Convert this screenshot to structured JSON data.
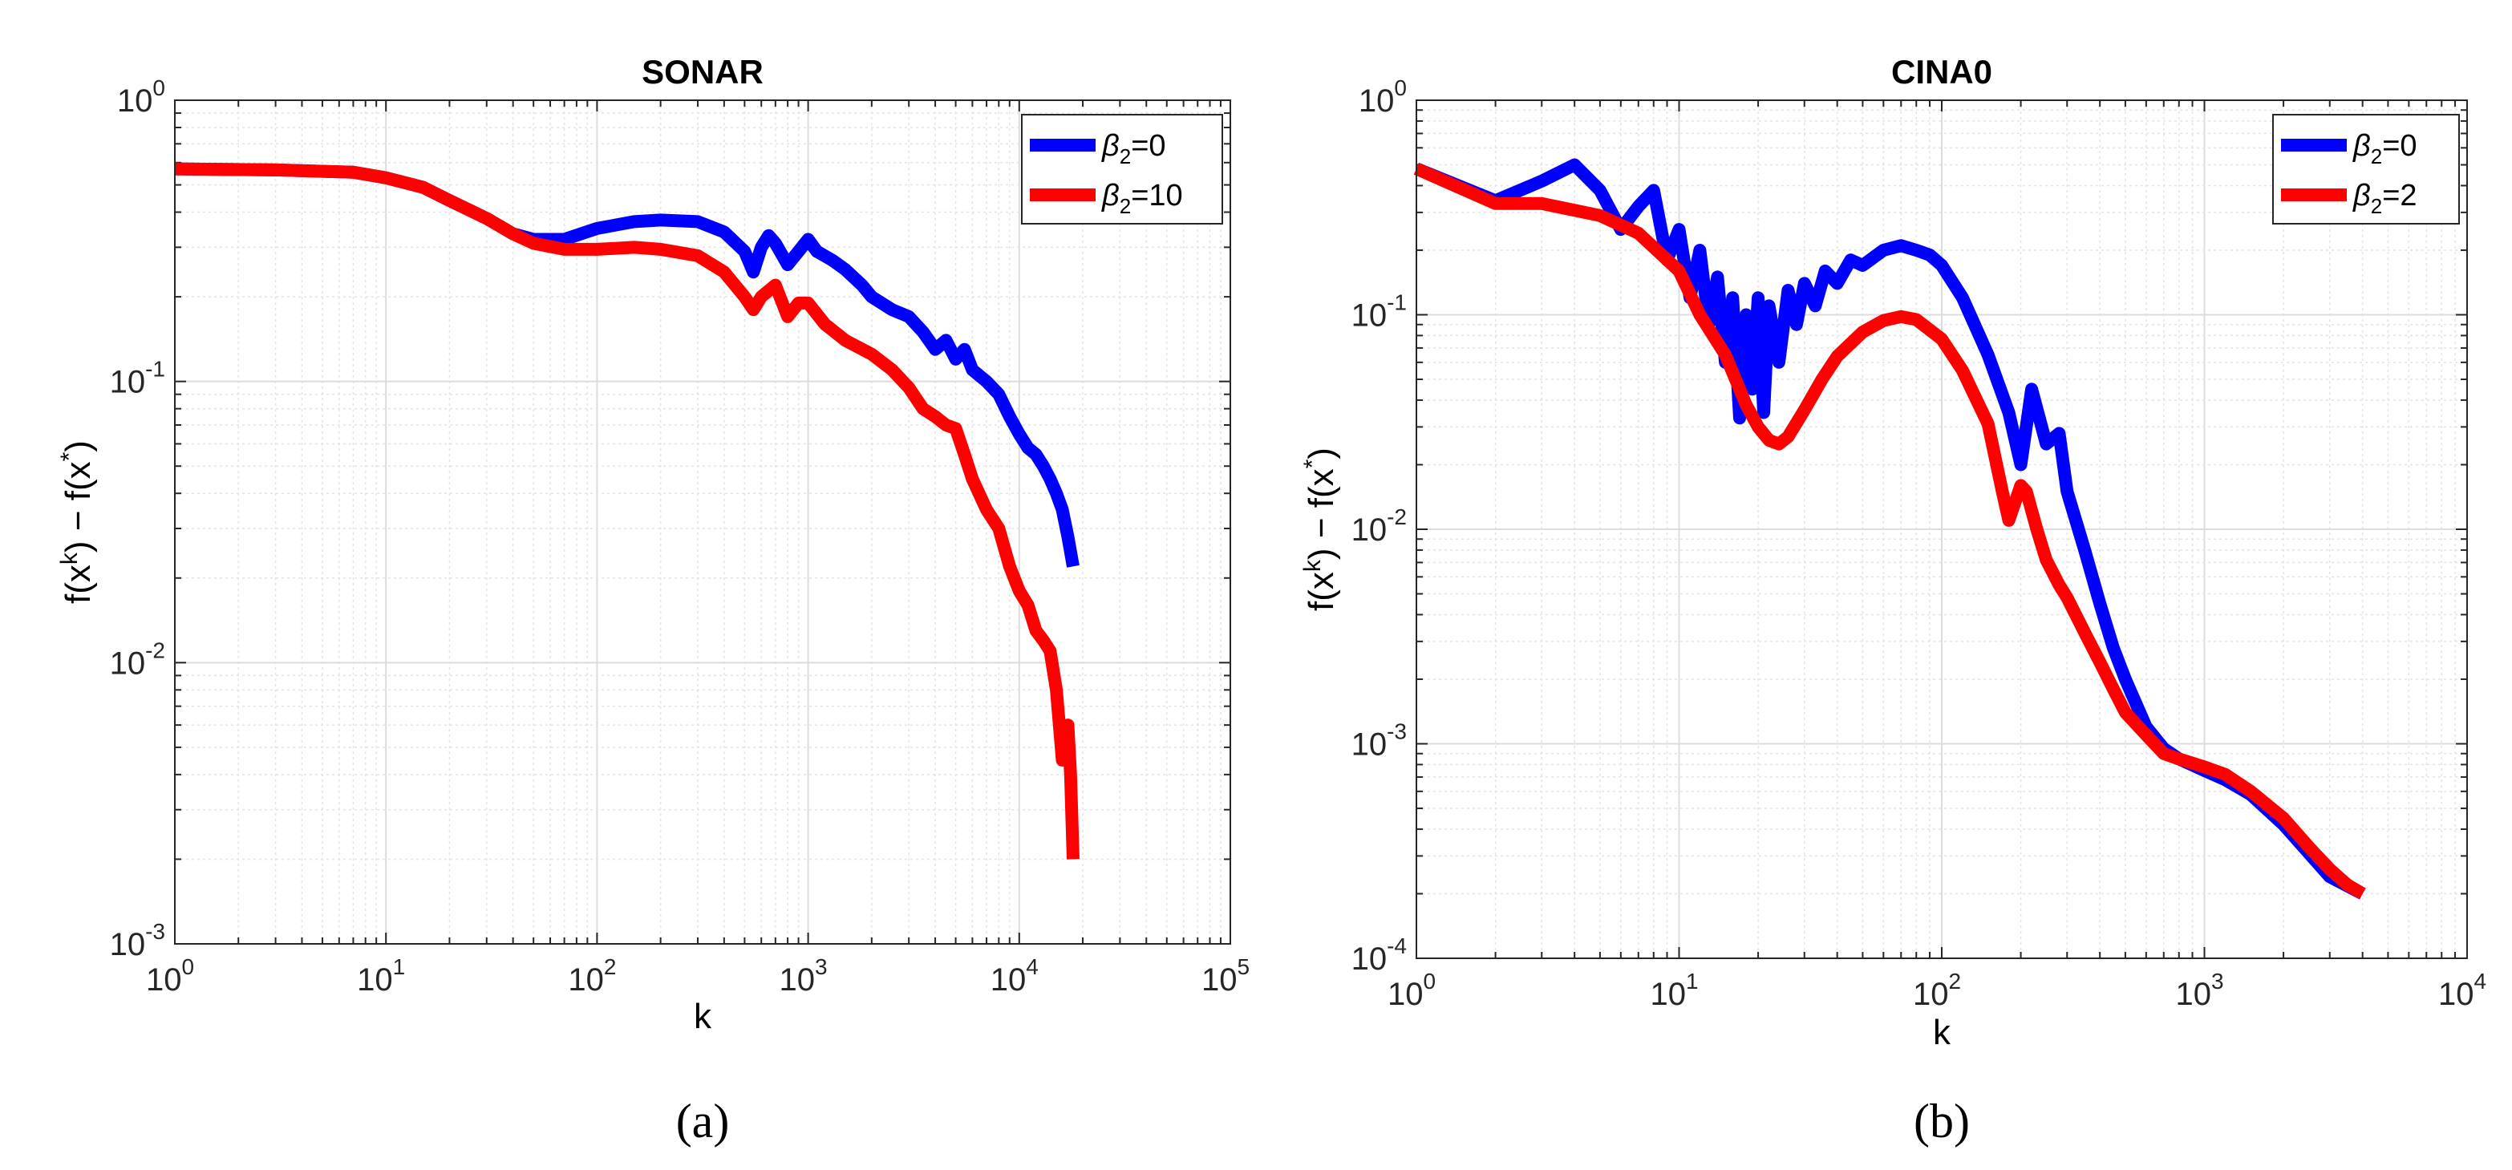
{
  "chart_data": [
    {
      "type": "line",
      "title": "SONAR",
      "xlabel": "k",
      "ylabel": "f(x^k) − f(x^*)",
      "ylabel_parts": {
        "base": "f(x",
        "sup1": "k",
        "mid": ") − f(x",
        "sup2": "*",
        "end": ")"
      },
      "caption": "(a)",
      "xscale": "log",
      "yscale": "log",
      "xlim": [
        1,
        100000
      ],
      "ylim": [
        0.001,
        1
      ],
      "xticks": [
        {
          "v": 1,
          "base": "10",
          "exp": "0"
        },
        {
          "v": 10,
          "base": "10",
          "exp": "1"
        },
        {
          "v": 100,
          "base": "10",
          "exp": "2"
        },
        {
          "v": 1000,
          "base": "10",
          "exp": "3"
        },
        {
          "v": 10000,
          "base": "10",
          "exp": "4"
        },
        {
          "v": 100000,
          "base": "10",
          "exp": "5"
        }
      ],
      "yticks": [
        {
          "v": 0.001,
          "base": "10",
          "exp": "-3"
        },
        {
          "v": 0.01,
          "base": "10",
          "exp": "-2"
        },
        {
          "v": 0.1,
          "base": "10",
          "exp": "-1"
        },
        {
          "v": 1,
          "base": "10",
          "exp": "0"
        }
      ],
      "grid": true,
      "legend_position": "top-right",
      "series": [
        {
          "name": "β2=0",
          "legend_sym": "β",
          "legend_sub": "2",
          "legend_rest": "=0",
          "color": "#0000ff",
          "x": [
            1,
            3,
            7,
            10,
            15,
            20,
            30,
            40,
            50,
            70,
            100,
            150,
            200,
            300,
            400,
            500,
            550,
            600,
            650,
            700,
            800,
            900,
            1000,
            1100,
            1300,
            1500,
            1800,
            2000,
            2500,
            3000,
            3500,
            4000,
            4500,
            5000,
            5500,
            6000,
            7000,
            8000,
            9000,
            10000,
            11000,
            12000,
            13000,
            14000,
            15000,
            16000,
            17000,
            18000
          ],
          "y": [
            0.57,
            0.565,
            0.555,
            0.53,
            0.49,
            0.44,
            0.38,
            0.335,
            0.32,
            0.32,
            0.35,
            0.37,
            0.375,
            0.37,
            0.34,
            0.29,
            0.245,
            0.3,
            0.33,
            0.31,
            0.26,
            0.29,
            0.32,
            0.29,
            0.27,
            0.25,
            0.22,
            0.2,
            0.18,
            0.17,
            0.15,
            0.13,
            0.14,
            0.12,
            0.13,
            0.11,
            0.1,
            0.09,
            0.075,
            0.065,
            0.058,
            0.055,
            0.05,
            0.045,
            0.04,
            0.035,
            0.028,
            0.022
          ]
        },
        {
          "name": "β2=10",
          "legend_sym": "β",
          "legend_sub": "2",
          "legend_rest": "=10",
          "color": "#ff0000",
          "x": [
            1,
            3,
            7,
            10,
            15,
            20,
            30,
            40,
            50,
            70,
            100,
            150,
            200,
            300,
            400,
            500,
            550,
            600,
            700,
            800,
            900,
            1000,
            1200,
            1500,
            2000,
            2500,
            3000,
            3500,
            4000,
            4500,
            5000,
            5500,
            6000,
            7000,
            8000,
            9000,
            10000,
            11000,
            12000,
            13000,
            14000,
            15000,
            16000,
            17000,
            17500,
            18000
          ],
          "y": [
            0.57,
            0.565,
            0.555,
            0.53,
            0.49,
            0.44,
            0.38,
            0.335,
            0.31,
            0.295,
            0.295,
            0.3,
            0.295,
            0.28,
            0.245,
            0.2,
            0.18,
            0.2,
            0.22,
            0.17,
            0.19,
            0.19,
            0.16,
            0.14,
            0.125,
            0.11,
            0.095,
            0.08,
            0.075,
            0.07,
            0.068,
            0.055,
            0.045,
            0.035,
            0.03,
            0.022,
            0.018,
            0.016,
            0.013,
            0.012,
            0.011,
            0.008,
            0.0045,
            0.006,
            0.004,
            0.002
          ]
        }
      ]
    },
    {
      "type": "line",
      "title": "CINA0",
      "xlabel": "k",
      "ylabel": "f(x^k) − f(x^*)",
      "ylabel_parts": {
        "base": "f(x",
        "sup1": "k",
        "mid": ") − f(x",
        "sup2": "*",
        "end": ")"
      },
      "caption": "(b)",
      "xscale": "log",
      "yscale": "log",
      "xlim": [
        1,
        10000
      ],
      "ylim": [
        0.0001,
        1
      ],
      "xticks": [
        {
          "v": 1,
          "base": "10",
          "exp": "0"
        },
        {
          "v": 10,
          "base": "10",
          "exp": "1"
        },
        {
          "v": 100,
          "base": "10",
          "exp": "2"
        },
        {
          "v": 1000,
          "base": "10",
          "exp": "3"
        },
        {
          "v": 10000,
          "base": "10",
          "exp": "4"
        }
      ],
      "yticks": [
        {
          "v": 0.0001,
          "base": "10",
          "exp": "-4"
        },
        {
          "v": 0.001,
          "base": "10",
          "exp": "-3"
        },
        {
          "v": 0.01,
          "base": "10",
          "exp": "-2"
        },
        {
          "v": 0.1,
          "base": "10",
          "exp": "-1"
        },
        {
          "v": 1,
          "base": "10",
          "exp": "0"
        }
      ],
      "grid": true,
      "legend_position": "top-right",
      "series": [
        {
          "name": "β2=0",
          "legend_sym": "β",
          "legend_sub": "2",
          "legend_rest": "=0",
          "color": "#0000ff",
          "x": [
            1,
            2,
            3,
            4,
            5,
            6,
            7,
            8,
            9,
            10,
            11,
            12,
            13,
            14,
            15,
            16,
            17,
            18,
            19,
            20,
            21,
            22,
            24,
            26,
            28,
            30,
            33,
            36,
            40,
            45,
            50,
            60,
            70,
            80,
            90,
            100,
            120,
            150,
            180,
            200,
            220,
            250,
            280,
            300,
            350,
            400,
            450,
            500,
            600,
            700,
            800,
            1000,
            1200,
            1500,
            2000,
            3000,
            4000
          ],
          "y": [
            0.48,
            0.34,
            0.42,
            0.5,
            0.38,
            0.25,
            0.32,
            0.38,
            0.18,
            0.25,
            0.12,
            0.2,
            0.09,
            0.15,
            0.06,
            0.12,
            0.033,
            0.1,
            0.045,
            0.12,
            0.035,
            0.11,
            0.06,
            0.13,
            0.09,
            0.14,
            0.11,
            0.16,
            0.14,
            0.18,
            0.17,
            0.2,
            0.21,
            0.2,
            0.19,
            0.17,
            0.12,
            0.065,
            0.035,
            0.02,
            0.045,
            0.025,
            0.028,
            0.015,
            0.008,
            0.0045,
            0.0028,
            0.002,
            0.0012,
            0.00095,
            0.00085,
            0.00075,
            0.00068,
            0.00058,
            0.00042,
            0.00024,
            0.0002
          ]
        },
        {
          "name": "β2=2",
          "legend_sym": "β",
          "legend_sub": "2",
          "legend_rest": "=2",
          "color": "#ff0000",
          "x": [
            1,
            2,
            3,
            5,
            7,
            10,
            12,
            15,
            18,
            20,
            22,
            24,
            26,
            30,
            35,
            40,
            50,
            60,
            70,
            80,
            100,
            120,
            150,
            170,
            180,
            200,
            210,
            230,
            250,
            280,
            300,
            350,
            400,
            450,
            500,
            600,
            700,
            800,
            1000,
            1200,
            1500,
            2000,
            2500,
            3000,
            3500,
            4000
          ],
          "y": [
            0.48,
            0.33,
            0.33,
            0.29,
            0.24,
            0.16,
            0.1,
            0.065,
            0.038,
            0.03,
            0.026,
            0.025,
            0.027,
            0.036,
            0.05,
            0.064,
            0.083,
            0.094,
            0.098,
            0.095,
            0.077,
            0.055,
            0.031,
            0.015,
            0.011,
            0.016,
            0.015,
            0.01,
            0.0072,
            0.0055,
            0.0048,
            0.0033,
            0.0024,
            0.0018,
            0.0014,
            0.0011,
            0.0009,
            0.00085,
            0.00078,
            0.00072,
            0.0006,
            0.00045,
            0.00033,
            0.00026,
            0.00022,
            0.0002
          ]
        }
      ]
    }
  ]
}
